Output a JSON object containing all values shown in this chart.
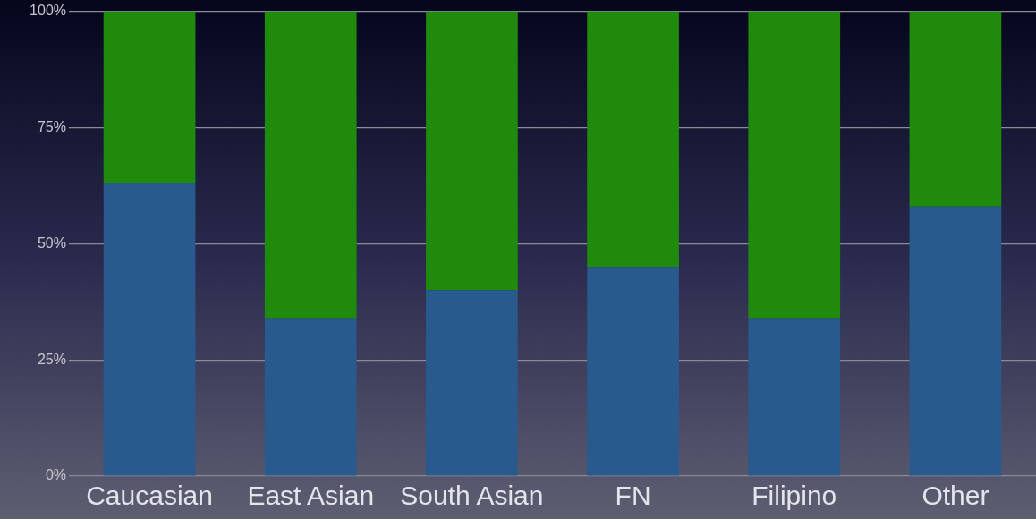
{
  "chart_data": {
    "type": "bar",
    "stacked": true,
    "categories": [
      "Caucasian",
      "East Asian",
      "South Asian",
      "FN",
      "Filipino",
      "Other"
    ],
    "series": [
      {
        "color": "#285a8e",
        "values": [
          63,
          34,
          40,
          45,
          34,
          58
        ]
      },
      {
        "color": "#1f8a0c",
        "values": [
          37,
          66,
          60,
          55,
          66,
          42
        ]
      }
    ],
    "ylim": [
      0,
      100
    ],
    "yticks": [
      {
        "value": 0,
        "label": "0%"
      },
      {
        "value": 25,
        "label": "25%"
      },
      {
        "value": 50,
        "label": "50%"
      },
      {
        "value": 75,
        "label": "75%"
      },
      {
        "value": 100,
        "label": "100%"
      }
    ],
    "grid": "y",
    "legend": false
  }
}
